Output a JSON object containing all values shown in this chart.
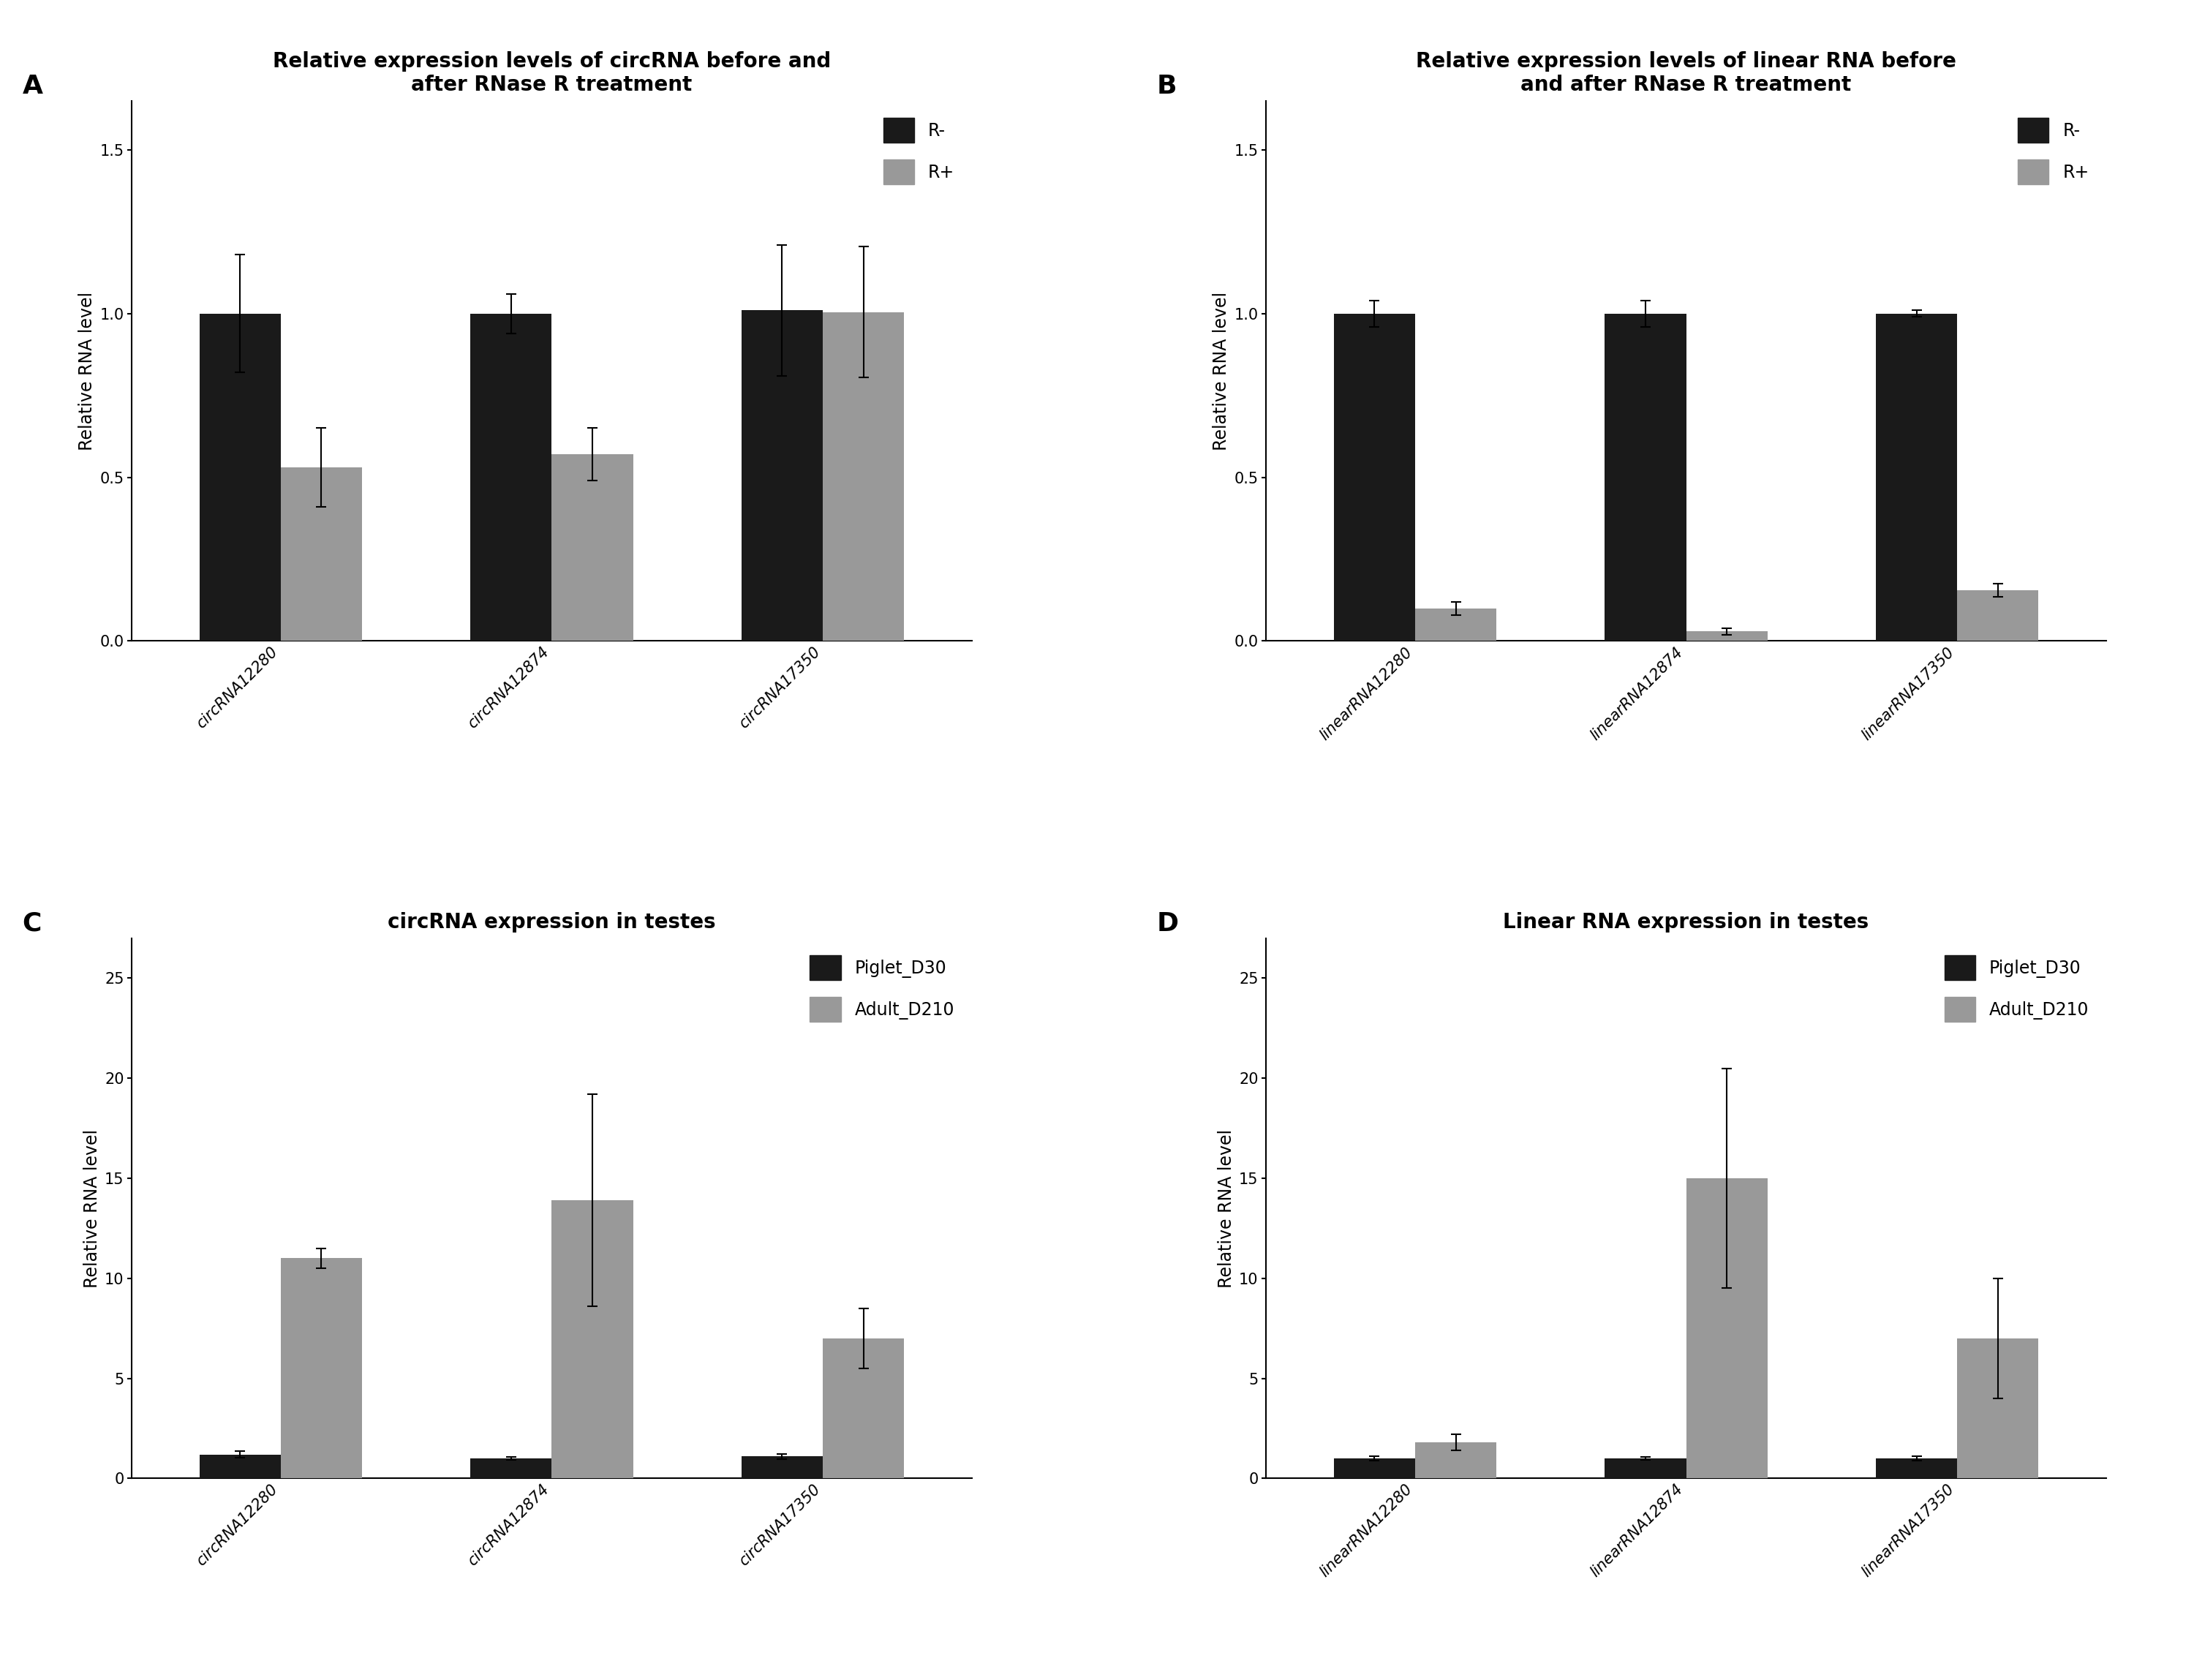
{
  "panel_A": {
    "title": "Relative expression levels of circRNA before and\nafter RNase R treatment",
    "categories": [
      "circRNA12280",
      "circRNA12874",
      "circRNA17350"
    ],
    "R_minus": [
      1.0,
      1.0,
      1.01
    ],
    "R_plus": [
      0.53,
      0.57,
      1.005
    ],
    "R_minus_err": [
      0.18,
      0.06,
      0.2
    ],
    "R_plus_err": [
      0.12,
      0.08,
      0.2
    ],
    "ylabel": "Relative RNA level",
    "ylim": [
      0,
      1.65
    ],
    "yticks": [
      0.0,
      0.5,
      1.0,
      1.5
    ],
    "legend": [
      "R-",
      "R+"
    ]
  },
  "panel_B": {
    "title": "Relative expression levels of linear RNA before\nand after RNase R treatment",
    "categories": [
      "linearRNA12280",
      "linearRNA12874",
      "linearRNA17350"
    ],
    "R_minus": [
      1.0,
      1.0,
      1.0
    ],
    "R_plus": [
      0.1,
      0.03,
      0.155
    ],
    "R_minus_err": [
      0.04,
      0.04,
      0.01
    ],
    "R_plus_err": [
      0.02,
      0.01,
      0.02
    ],
    "ylabel": "Relative RNA level",
    "ylim": [
      0,
      1.65
    ],
    "yticks": [
      0.0,
      0.5,
      1.0,
      1.5
    ],
    "legend": [
      "R-",
      "R+"
    ]
  },
  "panel_C": {
    "title": "circRNA expression in testes",
    "categories": [
      "circRNA12280",
      "circRNA12874",
      "circRNA17350"
    ],
    "piglet": [
      1.2,
      1.0,
      1.1
    ],
    "adult": [
      11.0,
      13.9,
      7.0
    ],
    "piglet_err": [
      0.15,
      0.08,
      0.12
    ],
    "adult_err": [
      0.5,
      5.3,
      1.5
    ],
    "ylabel": "Relative RNA level",
    "ylim": [
      0,
      27
    ],
    "yticks": [
      0,
      5,
      10,
      15,
      20,
      25
    ],
    "legend": [
      "Piglet_D30",
      "Adult_D210"
    ]
  },
  "panel_D": {
    "title": "Linear RNA expression in testes",
    "categories": [
      "linearRNA12280",
      "linearRNA12874",
      "linearRNA17350"
    ],
    "piglet": [
      1.0,
      1.0,
      1.0
    ],
    "adult": [
      1.8,
      15.0,
      7.0
    ],
    "piglet_err": [
      0.12,
      0.08,
      0.1
    ],
    "adult_err": [
      0.4,
      5.5,
      3.0
    ],
    "ylabel": "Relative RNA level",
    "ylim": [
      0,
      27
    ],
    "yticks": [
      0,
      5,
      10,
      15,
      20,
      25
    ],
    "legend": [
      "Piglet_D30",
      "Adult_D210"
    ]
  },
  "bar_width": 0.3,
  "black_color": "#1a1a1a",
  "gray_color": "#999999",
  "background_color": "#ffffff",
  "label_fontsize": 26,
  "title_fontsize": 20,
  "tick_fontsize": 15,
  "ylabel_fontsize": 17,
  "legend_fontsize": 17,
  "xtick_rotation": 45
}
